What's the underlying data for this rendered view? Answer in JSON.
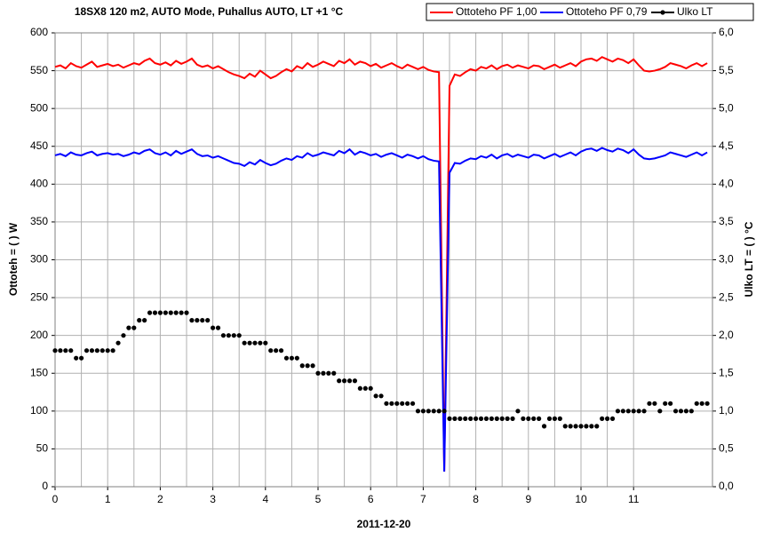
{
  "chart_data": {
    "type": "line",
    "title": "18SX8 120 m2, AUTO Mode, Puhallus AUTO, LT +1 °C",
    "x_label": "2011-12-20",
    "y_label": "Ottoteh = ( ) W",
    "y2_label": "Ulko LT = ( ) °C",
    "x": [
      0,
      0.1,
      0.2,
      0.3,
      0.4,
      0.5,
      0.6,
      0.7,
      0.8,
      0.9,
      1,
      1.1,
      1.2,
      1.3,
      1.4,
      1.5,
      1.6,
      1.7,
      1.8,
      1.9,
      2,
      2.1,
      2.2,
      2.3,
      2.4,
      2.5,
      2.6,
      2.7,
      2.8,
      2.9,
      3,
      3.1,
      3.2,
      3.3,
      3.4,
      3.5,
      3.6,
      3.7,
      3.8,
      3.9,
      4,
      4.1,
      4.2,
      4.3,
      4.4,
      4.5,
      4.6,
      4.7,
      4.8,
      4.9,
      5,
      5.1,
      5.2,
      5.3,
      5.4,
      5.5,
      5.6,
      5.7,
      5.8,
      5.9,
      6,
      6.1,
      6.2,
      6.3,
      6.4,
      6.5,
      6.6,
      6.7,
      6.8,
      6.9,
      7,
      7.1,
      7.2,
      7.3,
      7.4,
      7.5,
      7.6,
      7.7,
      7.8,
      7.9,
      8,
      8.1,
      8.2,
      8.3,
      8.4,
      8.5,
      8.6,
      8.7,
      8.8,
      8.9,
      9,
      9.1,
      9.2,
      9.3,
      9.4,
      9.5,
      9.6,
      9.7,
      9.8,
      9.9,
      10,
      10.1,
      10.2,
      10.3,
      10.4,
      10.5,
      10.6,
      10.7,
      10.8,
      10.9,
      11,
      11.1,
      11.2,
      11.3,
      11.4,
      11.5,
      11.6,
      11.7,
      11.8,
      11.9,
      12,
      12.1,
      12.2,
      12.3,
      12.4
    ],
    "series": [
      {
        "name": "Ottoteho PF 1,00",
        "color": "#ff0000",
        "show_line": true,
        "values": [
          555,
          557,
          553,
          560,
          556,
          554,
          558,
          562,
          555,
          557,
          559,
          556,
          558,
          554,
          557,
          560,
          558,
          563,
          566,
          560,
          558,
          561,
          557,
          563,
          559,
          562,
          566,
          558,
          555,
          557,
          553,
          556,
          552,
          548,
          545,
          543,
          540,
          546,
          542,
          550,
          545,
          540,
          543,
          548,
          552,
          549,
          556,
          553,
          560,
          555,
          558,
          562,
          559,
          556,
          563,
          560,
          565,
          558,
          562,
          560,
          556,
          559,
          554,
          557,
          560,
          556,
          553,
          558,
          555,
          552,
          555,
          551,
          549,
          548,
          20,
          530,
          545,
          543,
          548,
          552,
          550,
          555,
          553,
          557,
          552,
          556,
          558,
          554,
          557,
          555,
          553,
          557,
          556,
          552,
          555,
          558,
          554,
          557,
          560,
          556,
          562,
          565,
          566,
          563,
          568,
          565,
          562,
          566,
          564,
          560,
          565,
          557,
          550,
          549,
          550,
          552,
          555,
          560,
          558,
          556,
          553,
          557,
          560,
          556,
          560
        ]
      },
      {
        "name": "Ottoteho PF 0,79",
        "color": "#0000ff",
        "show_line": true,
        "values": [
          438,
          440,
          437,
          442,
          439,
          438,
          441,
          443,
          438,
          440,
          441,
          439,
          440,
          437,
          439,
          442,
          440,
          444,
          446,
          441,
          439,
          442,
          438,
          444,
          440,
          443,
          446,
          440,
          437,
          438,
          435,
          437,
          434,
          431,
          428,
          427,
          424,
          429,
          426,
          432,
          428,
          425,
          427,
          431,
          434,
          432,
          437,
          435,
          441,
          437,
          439,
          442,
          440,
          438,
          444,
          441,
          446,
          439,
          443,
          441,
          438,
          440,
          436,
          439,
          441,
          438,
          435,
          439,
          437,
          434,
          437,
          433,
          431,
          430,
          20,
          415,
          428,
          427,
          431,
          434,
          433,
          437,
          435,
          439,
          434,
          438,
          440,
          436,
          439,
          437,
          435,
          439,
          438,
          434,
          437,
          440,
          436,
          439,
          442,
          438,
          443,
          446,
          447,
          444,
          448,
          445,
          443,
          447,
          445,
          441,
          446,
          439,
          434,
          433,
          434,
          436,
          438,
          442,
          440,
          438,
          436,
          439,
          442,
          438,
          442
        ]
      },
      {
        "name": "Ulko LT",
        "color": "#000000",
        "axis": "y2",
        "show_line": false,
        "values": [
          1.8,
          1.8,
          1.8,
          1.8,
          1.7,
          1.7,
          1.8,
          1.8,
          1.8,
          1.8,
          1.8,
          1.8,
          1.9,
          2.0,
          2.1,
          2.1,
          2.2,
          2.2,
          2.3,
          2.3,
          2.3,
          2.3,
          2.3,
          2.3,
          2.3,
          2.3,
          2.2,
          2.2,
          2.2,
          2.2,
          2.1,
          2.1,
          2.0,
          2.0,
          2.0,
          2.0,
          1.9,
          1.9,
          1.9,
          1.9,
          1.9,
          1.8,
          1.8,
          1.8,
          1.7,
          1.7,
          1.7,
          1.6,
          1.6,
          1.6,
          1.5,
          1.5,
          1.5,
          1.5,
          1.4,
          1.4,
          1.4,
          1.4,
          1.3,
          1.3,
          1.3,
          1.2,
          1.2,
          1.1,
          1.1,
          1.1,
          1.1,
          1.1,
          1.1,
          1.0,
          1.0,
          1.0,
          1.0,
          1.0,
          1.0,
          0.9,
          0.9,
          0.9,
          0.9,
          0.9,
          0.9,
          0.9,
          0.9,
          0.9,
          0.9,
          0.9,
          0.9,
          0.9,
          1.0,
          0.9,
          0.9,
          0.9,
          0.9,
          0.8,
          0.9,
          0.9,
          0.9,
          0.8,
          0.8,
          0.8,
          0.8,
          0.8,
          0.8,
          0.8,
          0.9,
          0.9,
          0.9,
          1.0,
          1.0,
          1.0,
          1.0,
          1.0,
          1.0,
          1.1,
          1.1,
          1.0,
          1.1,
          1.1,
          1.0,
          1.0,
          1.0,
          1.0,
          1.1,
          1.1,
          1.1
        ]
      }
    ],
    "xlim": [
      0,
      12.5
    ],
    "xticks": [
      0,
      1,
      2,
      3,
      4,
      5,
      6,
      7,
      8,
      9,
      10,
      11
    ],
    "ylim": [
      0,
      600
    ],
    "yticks": [
      0,
      50,
      100,
      150,
      200,
      250,
      300,
      350,
      400,
      450,
      500,
      550,
      600
    ],
    "y2lim": [
      0,
      6
    ],
    "y2ticks": [
      {
        "value": 0,
        "label": "0,0"
      },
      {
        "value": 0.5,
        "label": "0,5"
      },
      {
        "value": 1,
        "label": "1,0"
      },
      {
        "value": 1.5,
        "label": "1,5"
      },
      {
        "value": 2,
        "label": "2,0"
      },
      {
        "value": 2.5,
        "label": "2,5"
      },
      {
        "value": 3,
        "label": "3,0"
      },
      {
        "value": 3.5,
        "label": "3,5"
      },
      {
        "value": 4,
        "label": "4,0"
      },
      {
        "value": 4.5,
        "label": "4,5"
      },
      {
        "value": 5,
        "label": "5,0"
      },
      {
        "value": 5.5,
        "label": "5,5"
      },
      {
        "value": 6,
        "label": "6,0"
      }
    ],
    "grid": true,
    "legend_position": "top-right"
  }
}
